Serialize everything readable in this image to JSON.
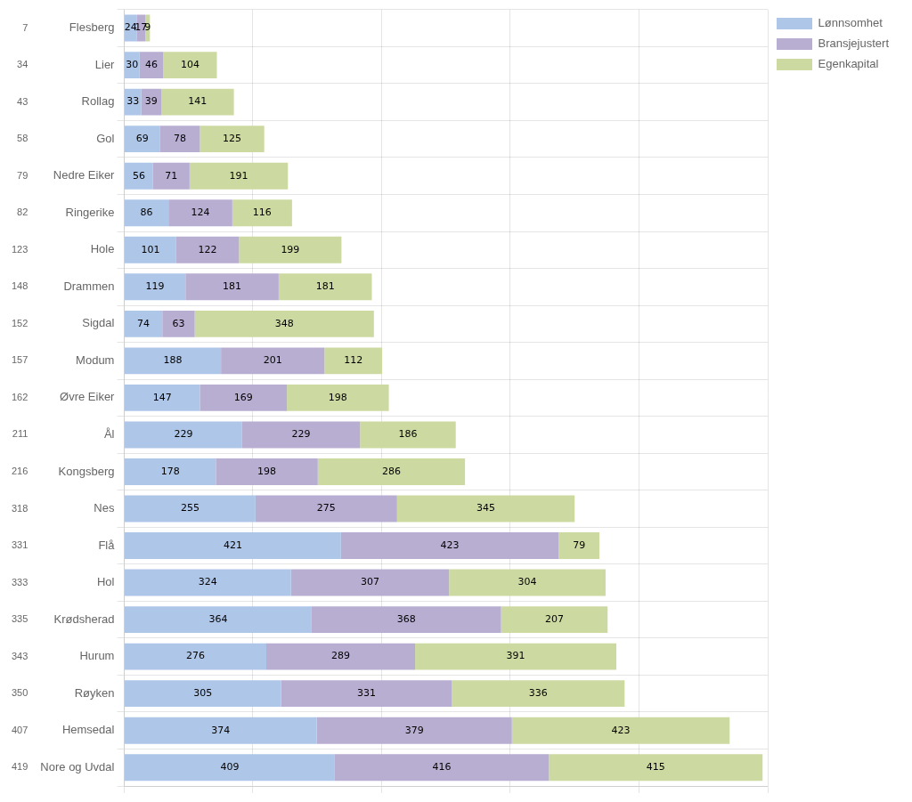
{
  "chart_data": {
    "type": "bar",
    "orientation": "horizontal",
    "stacked": true,
    "data_labels": true,
    "grid": true,
    "legend": "upper right",
    "tick_labels": "y",
    "categories": [
      "Flesberg",
      "Lier",
      "Rollag",
      "Gol",
      "Nedre Eiker",
      "Ringerike",
      "Hole",
      "Drammen",
      "Sigdal",
      "Modum",
      "Øvre Eiker",
      "Ål",
      "Kongsberg",
      "Nes",
      "Flå",
      "Hol",
      "Krødsherad",
      "Hurum",
      "Røyken",
      "Hemsedal",
      "Nore og Uvdal"
    ],
    "annotations": [
      {
        "category": "Flesberg",
        "text": "7"
      },
      {
        "category": "Lier",
        "text": "34"
      },
      {
        "category": "Rollag",
        "text": "43"
      },
      {
        "category": "Gol",
        "text": "58"
      },
      {
        "category": "Nedre Eiker",
        "text": "79"
      },
      {
        "category": "Ringerike",
        "text": "82"
      },
      {
        "category": "Hole",
        "text": "123"
      },
      {
        "category": "Drammen",
        "text": "148"
      },
      {
        "category": "Sigdal",
        "text": "152"
      },
      {
        "category": "Modum",
        "text": "157"
      },
      {
        "category": "Øvre Eiker",
        "text": "162"
      },
      {
        "category": "Ål",
        "text": "211"
      },
      {
        "category": "Kongsberg",
        "text": "216"
      },
      {
        "category": "Nes",
        "text": "318"
      },
      {
        "category": "Flå",
        "text": "331"
      },
      {
        "category": "Hol",
        "text": "333"
      },
      {
        "category": "Krødsherad",
        "text": "335"
      },
      {
        "category": "Hurum",
        "text": "343"
      },
      {
        "category": "Røyken",
        "text": "350"
      },
      {
        "category": "Hemsedal",
        "text": "407"
      },
      {
        "category": "Nore og Uvdal",
        "text": "419"
      }
    ],
    "series": [
      {
        "name": "Lønnsomhet",
        "color": "#aec6e8",
        "values": [
          24,
          30,
          33,
          69,
          56,
          86,
          101,
          119,
          74,
          188,
          147,
          229,
          178,
          255,
          421,
          324,
          364,
          276,
          305,
          374,
          409
        ]
      },
      {
        "name": "Bransjejustert",
        "color": "#b8aed2",
        "values": [
          17,
          46,
          39,
          78,
          71,
          124,
          122,
          181,
          63,
          201,
          169,
          229,
          198,
          275,
          423,
          307,
          368,
          289,
          331,
          379,
          416
        ]
      },
      {
        "name": "Egenkapital",
        "color": "#ccd9a0",
        "values": [
          9,
          104,
          141,
          125,
          191,
          116,
          199,
          181,
          348,
          112,
          198,
          186,
          286,
          345,
          79,
          304,
          207,
          391,
          336,
          423,
          415
        ]
      }
    ],
    "xlim": [
      0,
      1250
    ],
    "xticks": [
      0,
      250,
      500,
      750,
      1000,
      1250
    ]
  }
}
